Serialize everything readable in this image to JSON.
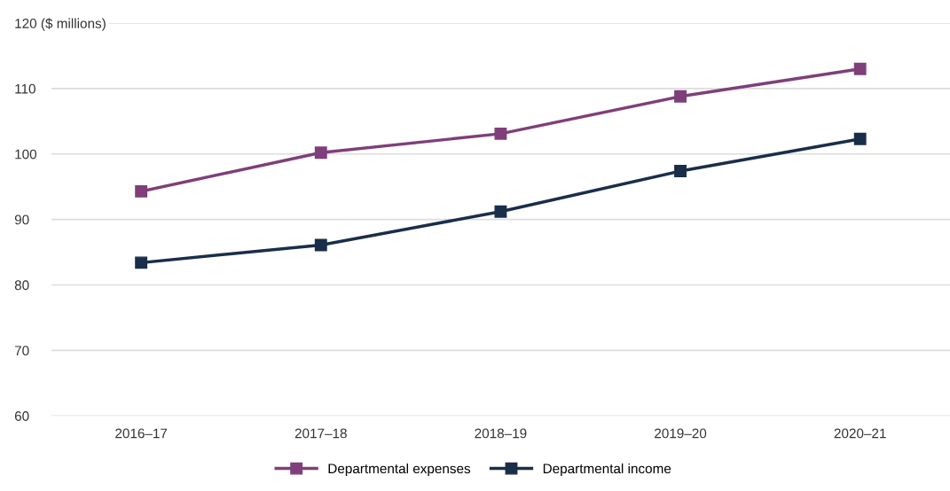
{
  "chart_data": {
    "type": "line",
    "categories": [
      "2016–17",
      "2017–18",
      "2018–19",
      "2019–20",
      "2020–21"
    ],
    "series": [
      {
        "name": "Departmental expenses",
        "color": "#7f3f7a",
        "values": [
          94.3,
          100.2,
          103.1,
          108.8,
          113.0
        ]
      },
      {
        "name": "Departmental income",
        "color": "#1a2e4a",
        "values": [
          83.4,
          86.1,
          91.2,
          97.4,
          102.3
        ]
      }
    ],
    "ylim": [
      60,
      120
    ],
    "yticks": [
      60,
      70,
      80,
      90,
      100,
      110,
      {
        "value": 120,
        "label": "120 ($ millions)"
      }
    ],
    "grid": "y",
    "legend": "bottom",
    "marker": "square",
    "line_style": "solid"
  }
}
